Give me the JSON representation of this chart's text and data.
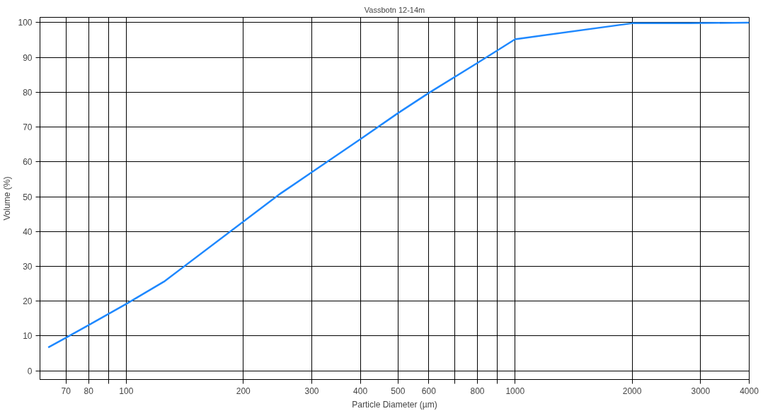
{
  "chart_data": {
    "type": "line",
    "title": "Vassbotn 12-14m",
    "xlabel": "Particle Diameter (µm)",
    "ylabel": "Volume (%)",
    "log": "x",
    "grid": true,
    "marker": "none",
    "line_style": "solid",
    "xlim": [
      60,
      4000
    ],
    "ylim": [
      -2.5,
      101.5
    ],
    "xticks": [
      70,
      80,
      {
        "value": 90,
        "label": null
      },
      100,
      200,
      300,
      400,
      500,
      600,
      {
        "value": 700,
        "label": null
      },
      800,
      {
        "value": 900,
        "label": null
      },
      1000,
      2000,
      3000,
      4000
    ],
    "yticks": [
      0,
      10,
      20,
      30,
      40,
      50,
      60,
      70,
      80,
      90,
      100
    ],
    "series": [
      {
        "color": "#1e88ff",
        "x": [
          63,
          70,
          80,
          100,
          125,
          250,
          300,
          400,
          500,
          600,
          800,
          1000,
          2000,
          2800,
          4000
        ],
        "values": [
          6.7,
          9.5,
          13.1,
          19.2,
          25.6,
          51,
          57,
          66.5,
          74,
          79.8,
          88.4,
          95.2,
          99.8,
          99.8,
          100
        ]
      }
    ]
  }
}
